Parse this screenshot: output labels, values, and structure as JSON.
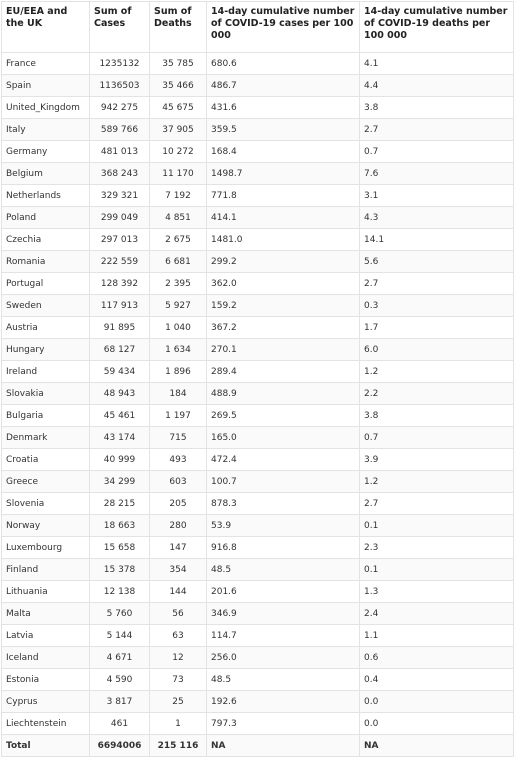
{
  "table": {
    "header": [
      "EU/EEA and the UK",
      "Sum of Cases",
      "Sum of Deaths",
      "14-day cumulative number of COVID-19 cases per 100 000",
      "14-day cumulative number of COVID-19 deaths per 100 000"
    ],
    "rows": [
      [
        "France",
        "1235132",
        "35 785",
        "680.6",
        "4.1"
      ],
      [
        "Spain",
        "1136503",
        "35 466",
        "486.7",
        "4.4"
      ],
      [
        "United_Kingdom",
        "942 275",
        "45 675",
        "431.6",
        "3.8"
      ],
      [
        "Italy",
        "589 766",
        "37 905",
        "359.5",
        "2.7"
      ],
      [
        "Germany",
        "481 013",
        "10 272",
        "168.4",
        "0.7"
      ],
      [
        "Belgium",
        "368 243",
        "11 170",
        "1498.7",
        "7.6"
      ],
      [
        "Netherlands",
        "329 321",
        "7 192",
        "771.8",
        "3.1"
      ],
      [
        "Poland",
        "299 049",
        "4 851",
        "414.1",
        "4.3"
      ],
      [
        "Czechia",
        "297 013",
        "2 675",
        "1481.0",
        "14.1"
      ],
      [
        "Romania",
        "222 559",
        "6 681",
        "299.2",
        "5.6"
      ],
      [
        "Portugal",
        "128 392",
        "2 395",
        "362.0",
        "2.7"
      ],
      [
        "Sweden",
        "117 913",
        "5 927",
        "159.2",
        "0.3"
      ],
      [
        "Austria",
        "91 895",
        "1 040",
        "367.2",
        "1.7"
      ],
      [
        "Hungary",
        "68 127",
        "1 634",
        "270.1",
        "6.0"
      ],
      [
        "Ireland",
        "59 434",
        "1 896",
        "289.4",
        "1.2"
      ],
      [
        "Slovakia",
        "48 943",
        "184",
        "488.9",
        "2.2"
      ],
      [
        "Bulgaria",
        "45 461",
        "1 197",
        "269.5",
        "3.8"
      ],
      [
        "Denmark",
        "43 174",
        "715",
        "165.0",
        "0.7"
      ],
      [
        "Croatia",
        "40 999",
        "493",
        "472.4",
        "3.9"
      ],
      [
        "Greece",
        "34 299",
        "603",
        "100.7",
        "1.2"
      ],
      [
        "Slovenia",
        "28 215",
        "205",
        "878.3",
        "2.7"
      ],
      [
        "Norway",
        "18 663",
        "280",
        "53.9",
        "0.1"
      ],
      [
        "Luxembourg",
        "15 658",
        "147",
        "916.8",
        "2.3"
      ],
      [
        "Finland",
        "15 378",
        "354",
        "48.5",
        "0.1"
      ],
      [
        "Lithuania",
        "12 138",
        "144",
        "201.6",
        "1.3"
      ],
      [
        "Malta",
        "5 760",
        "56",
        "346.9",
        "2.4"
      ],
      [
        "Latvia",
        "5 144",
        "63",
        "114.7",
        "1.1"
      ],
      [
        "Iceland",
        "4 671",
        "12",
        "256.0",
        "0.6"
      ],
      [
        "Estonia",
        "4 590",
        "73",
        "48.5",
        "0.4"
      ],
      [
        "Cyprus",
        "3 817",
        "25",
        "192.6",
        "0.0"
      ],
      [
        "Liechtenstein",
        "461",
        "1",
        "797.3",
        "0.0"
      ]
    ],
    "total": [
      "Total",
      "6694006",
      "215 116",
      "NA",
      "NA"
    ]
  }
}
